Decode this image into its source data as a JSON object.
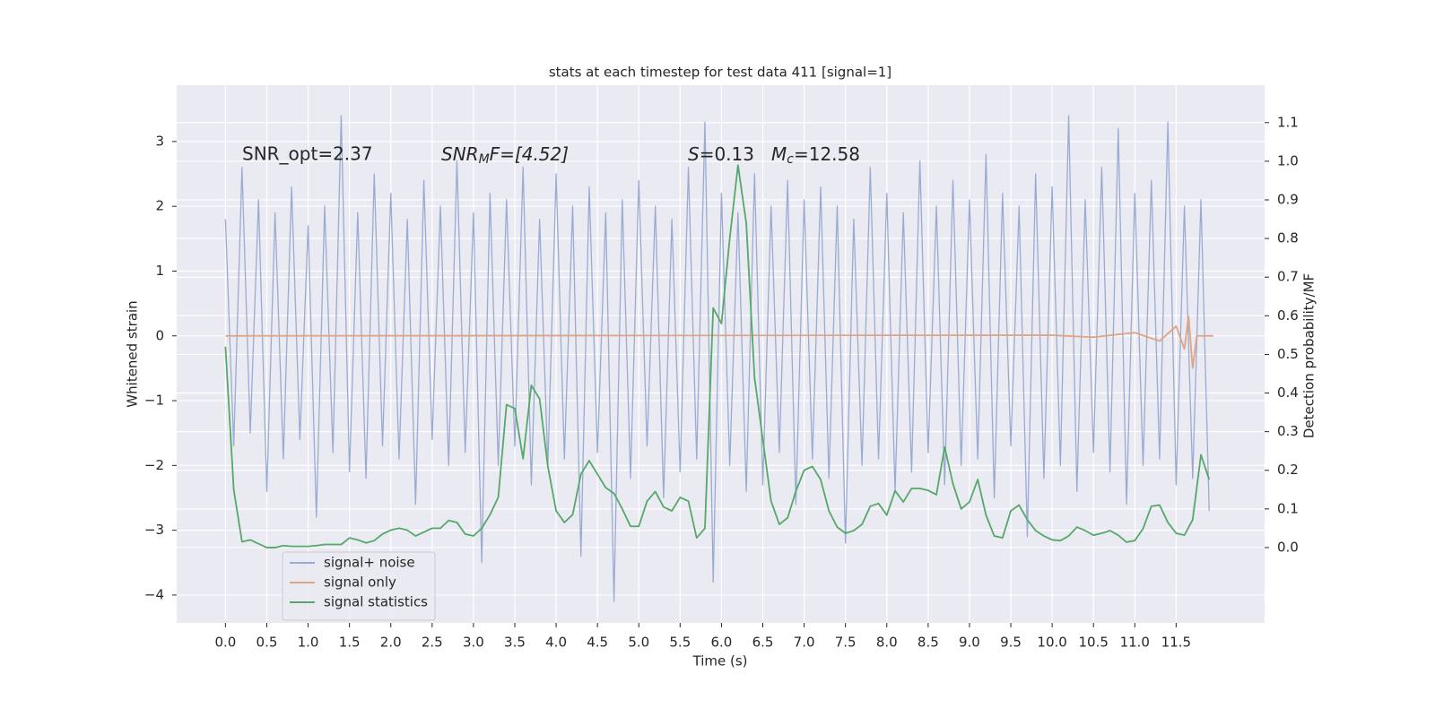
{
  "chart_data": {
    "type": "line",
    "title": "stats at each timestep for test data 411 [signal=1]",
    "x_label": "Time (s)",
    "y_label": "Whitened strain",
    "y2_label": "Detection probability/MF",
    "annotations": [
      {
        "parts": [
          "SNR_opt=2.37"
        ]
      },
      {
        "parts": [
          "SNR",
          "M",
          "F=[4.52]"
        ]
      },
      {
        "parts": [
          "S",
          "=0.13"
        ]
      },
      {
        "parts": [
          "M",
          "c",
          "=12.58"
        ]
      }
    ],
    "x": [
      0,
      0.1,
      0.2,
      0.3,
      0.4,
      0.5,
      0.6,
      0.7,
      0.8,
      0.9,
      1,
      1.1,
      1.2,
      1.3,
      1.4,
      1.5,
      1.6,
      1.7,
      1.8,
      1.9,
      2,
      2.1,
      2.2,
      2.3,
      2.4,
      2.5,
      2.6,
      2.7,
      2.8,
      2.9,
      3,
      3.1,
      3.2,
      3.3,
      3.4,
      3.5,
      3.6,
      3.7,
      3.8,
      3.9,
      4,
      4.1,
      4.2,
      4.3,
      4.4,
      4.5,
      4.6,
      4.7,
      4.8,
      4.9,
      5,
      5.1,
      5.2,
      5.3,
      5.4,
      5.5,
      5.6,
      5.7,
      5.8,
      5.9,
      6,
      6.1,
      6.2,
      6.3,
      6.4,
      6.5,
      6.6,
      6.7,
      6.8,
      6.9,
      7,
      7.1,
      7.2,
      7.3,
      7.4,
      7.5,
      7.6,
      7.7,
      7.8,
      7.9,
      8,
      8.1,
      8.2,
      8.3,
      8.4,
      8.5,
      8.6,
      8.7,
      8.8,
      8.9,
      9,
      9.1,
      9.2,
      9.3,
      9.4,
      9.5,
      9.6,
      9.7,
      9.8,
      9.9,
      10,
      10.1,
      10.2,
      10.3,
      10.4,
      10.5,
      10.6,
      10.7,
      10.8,
      10.9,
      11,
      11.1,
      11.2,
      11.3,
      11.4,
      11.5,
      11.6,
      11.7,
      11.8,
      11.9
    ],
    "series": [
      {
        "name": "signal+ noise",
        "color": "#9aabd2",
        "values": [
          1.8,
          -1.7,
          2.6,
          -1.5,
          2.1,
          -2.4,
          1.9,
          -1.9,
          2.3,
          -1.6,
          1.7,
          -2.8,
          2.0,
          -1.8,
          3.4,
          -2.1,
          1.9,
          -2.2,
          2.5,
          -1.7,
          2.2,
          -1.9,
          1.8,
          -2.6,
          2.4,
          -1.6,
          2.0,
          -2.0,
          2.7,
          -1.8,
          1.9,
          -3.5,
          2.2,
          -2.0,
          2.1,
          -1.7,
          2.6,
          -2.3,
          1.8,
          -2.0,
          2.5,
          -1.9,
          2.0,
          -3.4,
          2.3,
          -1.8,
          1.9,
          -4.1,
          2.1,
          -2.2,
          2.4,
          -1.7,
          2.0,
          -2.5,
          1.8,
          -2.1,
          2.6,
          -1.9,
          3.3,
          -3.8,
          2.2,
          -2.0,
          1.9,
          -2.4,
          2.5,
          -2.3,
          2.0,
          -1.8,
          2.4,
          -2.6,
          2.1,
          -1.9,
          2.3,
          -2.2,
          2.0,
          -3.2,
          1.8,
          -2.0,
          2.6,
          -1.9,
          2.2,
          -2.4,
          1.9,
          -2.1,
          2.7,
          -1.8,
          2.0,
          -2.3,
          2.4,
          -2.0,
          2.1,
          -1.9,
          2.8,
          -2.5,
          2.2,
          -1.7,
          2.0,
          -3.1,
          2.5,
          -2.2,
          2.3,
          -2.0,
          3.4,
          -2.4,
          2.1,
          -1.8,
          2.6,
          -2.1,
          3.2,
          -2.6,
          2.2,
          -2.0,
          2.4,
          -1.9,
          3.3,
          -2.3,
          2.0,
          -2.2,
          2.1,
          -2.7
        ]
      },
      {
        "name": "signal only",
        "color": "#e0a383",
        "x": [
          0,
          10,
          10.5,
          11,
          11.3,
          11.5,
          11.6,
          11.65,
          11.7,
          11.75,
          11.95
        ],
        "values": [
          0,
          0.01,
          -0.02,
          0.05,
          -0.08,
          0.15,
          -0.2,
          0.3,
          -0.5,
          0.0,
          0.0
        ]
      },
      {
        "name": "signal statistics",
        "color": "#55a868",
        "axis": "y2",
        "values": [
          0.52,
          0.15,
          0.015,
          0.02,
          0.01,
          0.0,
          0.0,
          0.005,
          0.003,
          0.003,
          0.003,
          0.005,
          0.008,
          0.008,
          0.008,
          0.025,
          0.02,
          0.012,
          0.018,
          0.035,
          0.045,
          0.05,
          0.045,
          0.03,
          0.04,
          0.05,
          0.05,
          0.07,
          0.065,
          0.035,
          0.03,
          0.05,
          0.085,
          0.13,
          0.37,
          0.36,
          0.23,
          0.42,
          0.385,
          0.21,
          0.095,
          0.065,
          0.085,
          0.19,
          0.225,
          0.19,
          0.155,
          0.14,
          0.1,
          0.055,
          0.055,
          0.12,
          0.145,
          0.105,
          0.095,
          0.13,
          0.12,
          0.025,
          0.05,
          0.62,
          0.58,
          0.8,
          0.99,
          0.84,
          0.44,
          0.28,
          0.12,
          0.06,
          0.077,
          0.146,
          0.2,
          0.21,
          0.176,
          0.095,
          0.053,
          0.037,
          0.044,
          0.06,
          0.107,
          0.114,
          0.084,
          0.147,
          0.118,
          0.153,
          0.153,
          0.148,
          0.137,
          0.26,
          0.165,
          0.1,
          0.118,
          0.176,
          0.084,
          0.03,
          0.025,
          0.095,
          0.11,
          0.072,
          0.044,
          0.03,
          0.02,
          0.018,
          0.03,
          0.053,
          0.044,
          0.032,
          0.037,
          0.044,
          0.032,
          0.014,
          0.018,
          0.049,
          0.107,
          0.11,
          0.065,
          0.037,
          0.032,
          0.072,
          0.24,
          0.176
        ]
      }
    ],
    "xlim": [
      -0.59,
      12.57
    ],
    "ylim": [
      -4.43,
      3.87
    ],
    "y2lim": [
      -0.195,
      1.197
    ],
    "xticks": [
      {
        "value": 0,
        "label": "0.0"
      },
      0.5,
      {
        "value": 1,
        "label": "1.0"
      },
      1.5,
      {
        "value": 2,
        "label": "2.0"
      },
      2.5,
      {
        "value": 3,
        "label": "3.0"
      },
      3.5,
      {
        "value": 4,
        "label": "4.0"
      },
      4.5,
      {
        "value": 5,
        "label": "5.0"
      },
      5.5,
      {
        "value": 6,
        "label": "6.0"
      },
      6.5,
      {
        "value": 7,
        "label": "7.0"
      },
      7.5,
      {
        "value": 8,
        "label": "8.0"
      },
      8.5,
      {
        "value": 9,
        "label": "9.0"
      },
      9.5,
      {
        "value": 10,
        "label": "10.0"
      },
      10.5,
      {
        "value": 11,
        "label": "11.0"
      },
      11.5
    ],
    "yticks": [
      {
        "value": -4,
        "label": "−4"
      },
      {
        "value": -3,
        "label": "−3"
      },
      {
        "value": -2,
        "label": "−2"
      },
      {
        "value": -1,
        "label": "−1"
      },
      0,
      1,
      2,
      3
    ],
    "y2ticks": [
      {
        "value": 0,
        "label": "0.0"
      },
      0.1,
      0.2,
      0.3,
      0.4,
      0.5,
      0.6,
      0.7,
      0.8,
      0.9,
      {
        "value": 1,
        "label": "1.0"
      },
      1.1
    ],
    "grid": true,
    "legend": "lower left",
    "background": "#eaeaf2"
  }
}
